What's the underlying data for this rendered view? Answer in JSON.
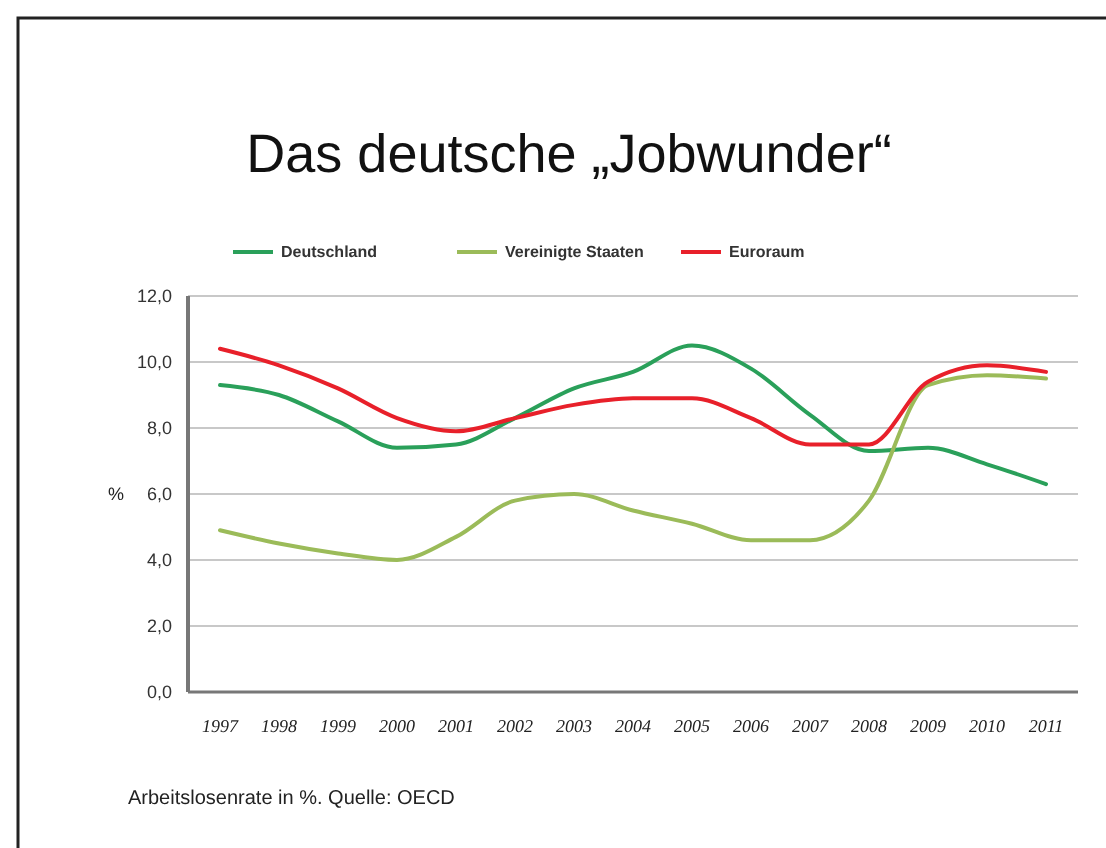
{
  "chart_data": {
    "type": "line",
    "title": "Das deutsche „Jobwunder“",
    "ylabel": "%",
    "categories": [
      "1997",
      "1998",
      "1999",
      "2000",
      "2001",
      "2002",
      "2003",
      "2004",
      "2005",
      "2006",
      "2007",
      "2008",
      "2009",
      "2010",
      "2011"
    ],
    "series": [
      {
        "name": "Deutschland",
        "color": "#2aa05a",
        "values": [
          9.3,
          9.0,
          8.2,
          7.4,
          7.5,
          8.3,
          9.2,
          9.7,
          10.5,
          9.8,
          8.4,
          7.3,
          7.4,
          6.9,
          6.3
        ]
      },
      {
        "name": "Vereinigte Staaten",
        "color": "#9bbb59",
        "values": [
          4.9,
          4.5,
          4.2,
          4.0,
          4.7,
          5.8,
          6.0,
          5.5,
          5.1,
          4.6,
          4.6,
          5.8,
          9.3,
          9.6,
          9.5
        ]
      },
      {
        "name": "Euroraum",
        "color": "#e8202a",
        "values": [
          10.4,
          9.9,
          9.2,
          8.3,
          7.9,
          8.3,
          8.7,
          8.9,
          8.9,
          8.3,
          7.5,
          7.5,
          9.4,
          9.9,
          9.7
        ]
      }
    ],
    "ylim": [
      0,
      12
    ],
    "yticks": [
      {
        "value": 0,
        "label": "0,0"
      },
      {
        "value": 2,
        "label": "2,0"
      },
      {
        "value": 4,
        "label": "4,0"
      },
      {
        "value": 6,
        "label": "6,0"
      },
      {
        "value": 8,
        "label": "8,0"
      },
      {
        "value": 10,
        "label": "10,0"
      },
      {
        "value": 12,
        "label": "12,0"
      }
    ],
    "grid": "y",
    "legend": "top",
    "marker": "none",
    "line_style": "solid",
    "annotations": [
      "Arbeitslosenrate in %. Quelle: OECD"
    ]
  }
}
